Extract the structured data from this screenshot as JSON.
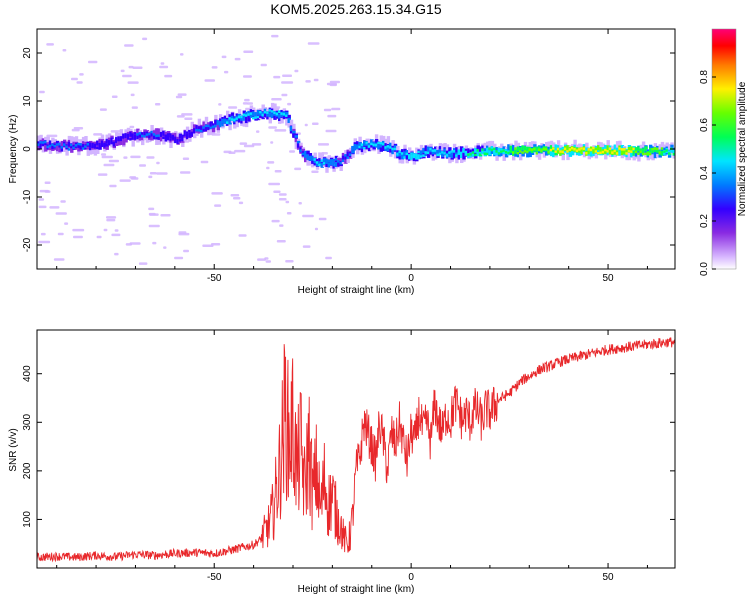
{
  "title": "KOM5.2025.263.15.34.G15",
  "chart_data": [
    {
      "type": "heatmap",
      "name": "spectrogram",
      "xlabel": "Height of straight line (km)",
      "ylabel": "Frequency (Hz)",
      "xlim": [
        -95,
        67
      ],
      "ylim": [
        -25,
        25
      ],
      "xticks": [
        -50,
        0,
        50
      ],
      "xtick_labels": [
        "-50",
        "0",
        "50"
      ],
      "yticks": [
        -20,
        -10,
        0,
        10,
        20
      ],
      "ytick_labels": [
        "-20",
        "-10",
        "0",
        "10",
        "20"
      ],
      "grid": false,
      "colorbar": {
        "label": "Normalized spectral amplitude",
        "range": [
          0,
          1
        ],
        "ticks": [
          0.0,
          0.2,
          0.4,
          0.6,
          0.8
        ],
        "tick_labels": [
          "0.0",
          "0.2",
          "0.4",
          "0.6",
          "0.8"
        ],
        "colormap": "hsv-rainbow (lavender → violet → blue → cyan → green → yellow → red → magenta)"
      },
      "ridge": {
        "description": "dominant frequency track vs height",
        "x": [
          -95,
          -88,
          -82,
          -78,
          -70,
          -64,
          -60,
          -55,
          -50,
          -45,
          -40,
          -36,
          -32,
          -30,
          -28,
          -25,
          -22,
          -18,
          -16,
          -14,
          -10,
          -6,
          -3,
          0,
          4,
          8,
          14,
          20,
          30,
          40,
          50,
          60,
          67
        ],
        "y": [
          1,
          0.5,
          0.5,
          1,
          3,
          3,
          2,
          4,
          5,
          6.5,
          7,
          7.5,
          7,
          3,
          -1,
          -2.5,
          -3,
          -2.5,
          -1,
          0.5,
          1,
          0.5,
          -1,
          -1.5,
          -0.5,
          -0.8,
          -0.8,
          -0.5,
          -0.3,
          -0.3,
          -0.3,
          -0.5,
          -0.5
        ],
        "peak_amplitude": [
          0.35,
          0.4,
          0.35,
          0.3,
          0.35,
          0.35,
          0.3,
          0.35,
          0.4,
          0.5,
          0.45,
          0.5,
          0.45,
          0.4,
          0.4,
          0.45,
          0.45,
          0.4,
          0.4,
          0.45,
          0.5,
          0.5,
          0.5,
          0.55,
          0.5,
          0.5,
          0.55,
          0.6,
          0.7,
          0.8,
          0.85,
          0.7,
          0.6
        ]
      }
    },
    {
      "type": "line",
      "name": "snr",
      "xlabel": "Height of straight line (km)",
      "ylabel": "SNR (v/v)",
      "xlim": [
        -95,
        67
      ],
      "ylim": [
        0,
        490
      ],
      "xticks": [
        -50,
        0,
        50
      ],
      "xtick_labels": [
        "-50",
        "0",
        "50"
      ],
      "yticks": [
        100,
        200,
        300,
        400
      ],
      "ytick_labels": [
        "100",
        "200",
        "300",
        "400"
      ],
      "grid": false,
      "color": "#e8282b",
      "x": [
        -95,
        -90,
        -85,
        -80,
        -75,
        -70,
        -65,
        -60,
        -55,
        -50,
        -45,
        -40,
        -38,
        -36,
        -35,
        -34,
        -33,
        -32,
        -31,
        -30,
        -29,
        -28,
        -27,
        -26,
        -25,
        -24,
        -23,
        -22,
        -21,
        -20,
        -19,
        -18,
        -17,
        -16,
        -15,
        -14,
        -13,
        -12,
        -11,
        -10,
        -9,
        -8,
        -7,
        -6,
        -5,
        -4,
        -3,
        -2,
        -1,
        0,
        1,
        2,
        3,
        4,
        5,
        6,
        7,
        8,
        9,
        10,
        11,
        12,
        13,
        14,
        15,
        16,
        17,
        18,
        19,
        20,
        22,
        25,
        28,
        30,
        33,
        35,
        38,
        40,
        45,
        50,
        55,
        60,
        65,
        67
      ],
      "y": [
        22,
        24,
        22,
        26,
        23,
        28,
        26,
        30,
        32,
        30,
        38,
        48,
        60,
        90,
        120,
        170,
        230,
        330,
        260,
        300,
        200,
        250,
        160,
        260,
        150,
        200,
        120,
        180,
        130,
        150,
        110,
        90,
        60,
        50,
        90,
        200,
        230,
        300,
        280,
        250,
        220,
        300,
        260,
        200,
        280,
        250,
        300,
        260,
        220,
        280,
        260,
        320,
        280,
        300,
        260,
        340,
        300,
        280,
        320,
        300,
        340,
        330,
        300,
        320,
        300,
        330,
        320,
        300,
        330,
        320,
        345,
        360,
        385,
        395,
        410,
        415,
        425,
        430,
        440,
        450,
        455,
        460,
        465,
        465
      ]
    }
  ]
}
